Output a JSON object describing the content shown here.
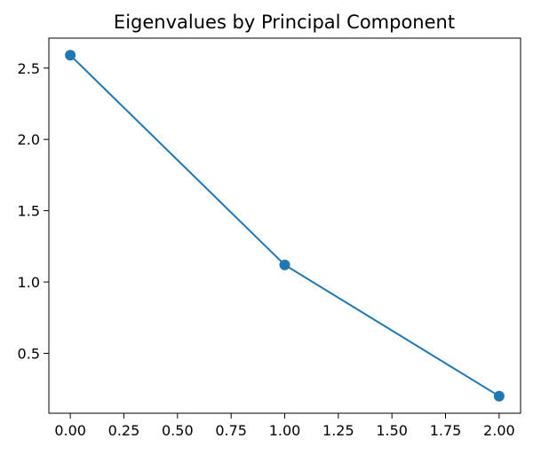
{
  "chart_data": {
    "type": "line",
    "title": "Eigenvalues by Principal Component",
    "xlabel": "",
    "ylabel": "",
    "x": [
      0,
      1,
      2
    ],
    "series": [
      {
        "values": [
          2.59,
          1.12,
          0.2
        ],
        "color": "#1f77b4",
        "marker": "circle"
      }
    ],
    "xlim": [
      -0.1,
      2.1
    ],
    "ylim": [
      0.08,
      2.71
    ],
    "xticks": [
      0.0,
      0.25,
      0.5,
      0.75,
      1.0,
      1.25,
      1.5,
      1.75,
      2.0
    ],
    "xtick_labels": [
      "0.00",
      "0.25",
      "0.50",
      "0.75",
      "1.00",
      "1.25",
      "1.50",
      "1.75",
      "2.00"
    ],
    "yticks": [
      0.5,
      1.0,
      1.5,
      2.0,
      2.5
    ],
    "ytick_labels": [
      "0.5",
      "1.0",
      "1.5",
      "2.0",
      "2.5"
    ],
    "grid": false,
    "legend": "none"
  }
}
